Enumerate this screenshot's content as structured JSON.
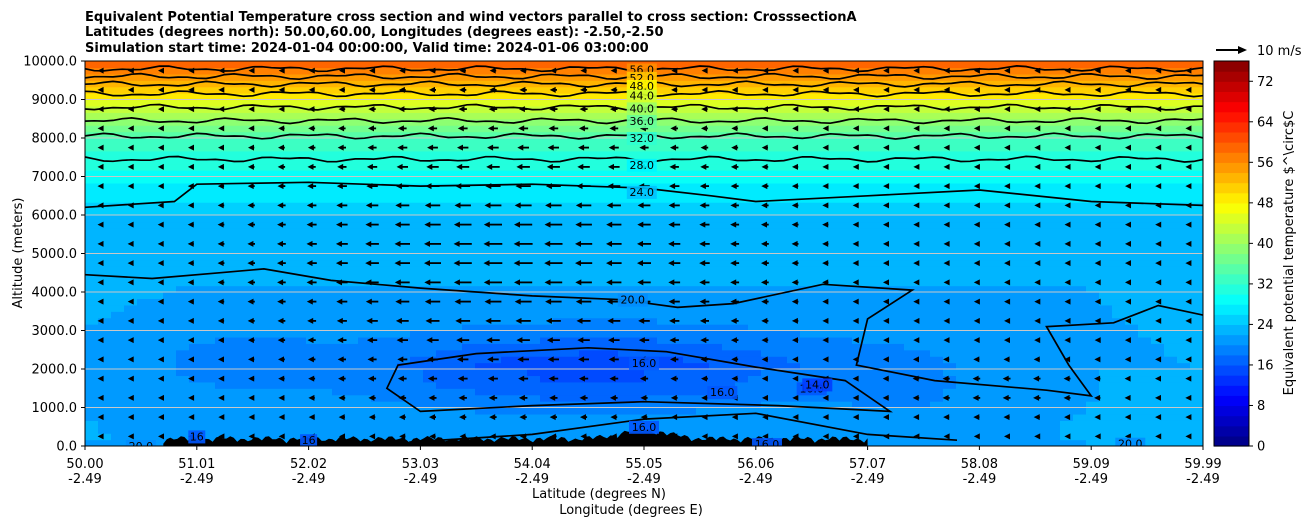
{
  "chart_data": {
    "type": "heatmap",
    "title_lines": [
      "Equivalent Potential Temperature cross section and wind vectors parallel to cross section: CrosssectionA",
      "Latitudes (degrees north): 50.00,60.00, Longitudes (degrees east): -2.50,-2.50",
      "Simulation start time: 2024-01-04 00:00:00, Valid time: 2024-01-06 03:00:00"
    ],
    "ylabel": "Altitude (meters)",
    "xlabel_lat": "Latitude (degrees N)",
    "xlabel_lon": "Longitude (degrees E)",
    "ylim": [
      0,
      10000
    ],
    "yticks": [
      "0.0",
      "1000.0",
      "2000.0",
      "3000.0",
      "4000.0",
      "5000.0",
      "6000.0",
      "7000.0",
      "8000.0",
      "9000.0",
      "10000.0"
    ],
    "xticks_lat": [
      "50.00",
      "51.01",
      "52.02",
      "53.03",
      "54.04",
      "55.05",
      "56.06",
      "57.07",
      "58.08",
      "59.09",
      "59.99"
    ],
    "xticks_lon": [
      "-2.49",
      "-2.49",
      "-2.49",
      "-2.49",
      "-2.49",
      "-2.49",
      "-2.49",
      "-2.49",
      "-2.49",
      "-2.49",
      "-2.49"
    ],
    "colorbar": {
      "label": "Equivalent potential temperature $^\\circ$C",
      "min": 0,
      "max": 76,
      "ticks": [
        "0",
        "8",
        "16",
        "24",
        "32",
        "40",
        "48",
        "56",
        "64",
        "72"
      ],
      "colormap": "jet"
    },
    "wind_key": "10 m/s",
    "contour_labels": [
      "56.0",
      "52.0",
      "48.0",
      "44.0",
      "40.0",
      "36.0",
      "32.0",
      "28.0",
      "24.0",
      "20.0",
      "16.0",
      "16.0",
      "16.0",
      "14.0",
      "20.0",
      "20.0",
      "16",
      "16",
      "16.0",
      "16.0"
    ],
    "grid": "horizontal"
  }
}
